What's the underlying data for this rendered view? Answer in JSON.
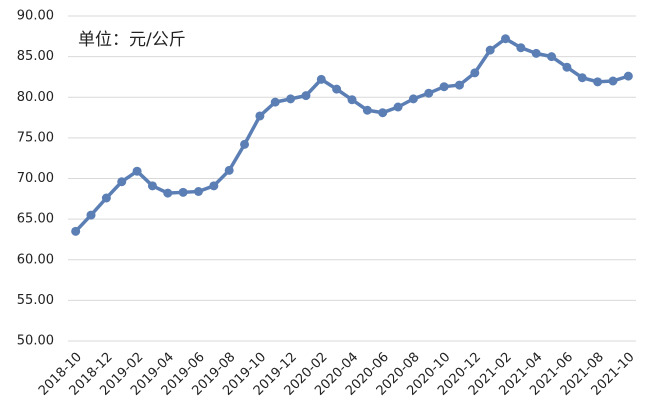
{
  "chart_data": {
    "type": "line",
    "annotation": "单位：元/公斤",
    "categories": [
      "2018-10",
      null,
      "2018-12",
      null,
      "2019-02",
      null,
      "2019-04",
      null,
      "2019-06",
      null,
      "2019-08",
      null,
      "2019-10",
      null,
      "2019-12",
      null,
      "2020-02",
      null,
      "2020-04",
      null,
      "2020-06",
      null,
      "2020-08",
      null,
      "2020-10",
      null,
      "2020-12",
      null,
      "2021-02",
      null,
      "2021-04",
      null,
      "2021-06",
      null,
      "2021-08",
      null,
      "2021-10"
    ],
    "series": [
      {
        "color": "#5b7fb5",
        "values": [
          63.5,
          65.5,
          67.6,
          69.6,
          70.9,
          69.1,
          68.2,
          68.3,
          68.4,
          69.1,
          71.0,
          74.2,
          77.7,
          79.4,
          79.8,
          80.2,
          82.2,
          81.0,
          79.7,
          78.4,
          78.1,
          78.8,
          79.8,
          80.5,
          81.3,
          81.5,
          83.0,
          85.8,
          87.2,
          86.1,
          85.4,
          85.0,
          83.7,
          82.4,
          81.9,
          82.0,
          82.6
        ]
      }
    ],
    "ylim": [
      50,
      90
    ],
    "yticks": [
      {
        "value": 50,
        "label": "50.00"
      },
      {
        "value": 55,
        "label": "55.00"
      },
      {
        "value": 60,
        "label": "60.00"
      },
      {
        "value": 65,
        "label": "65.00"
      },
      {
        "value": 70,
        "label": "70.00"
      },
      {
        "value": 75,
        "label": "75.00"
      },
      {
        "value": 80,
        "label": "80.00"
      },
      {
        "value": 85,
        "label": "85.00"
      },
      {
        "value": 90,
        "label": "90.00"
      }
    ],
    "grid": true
  }
}
